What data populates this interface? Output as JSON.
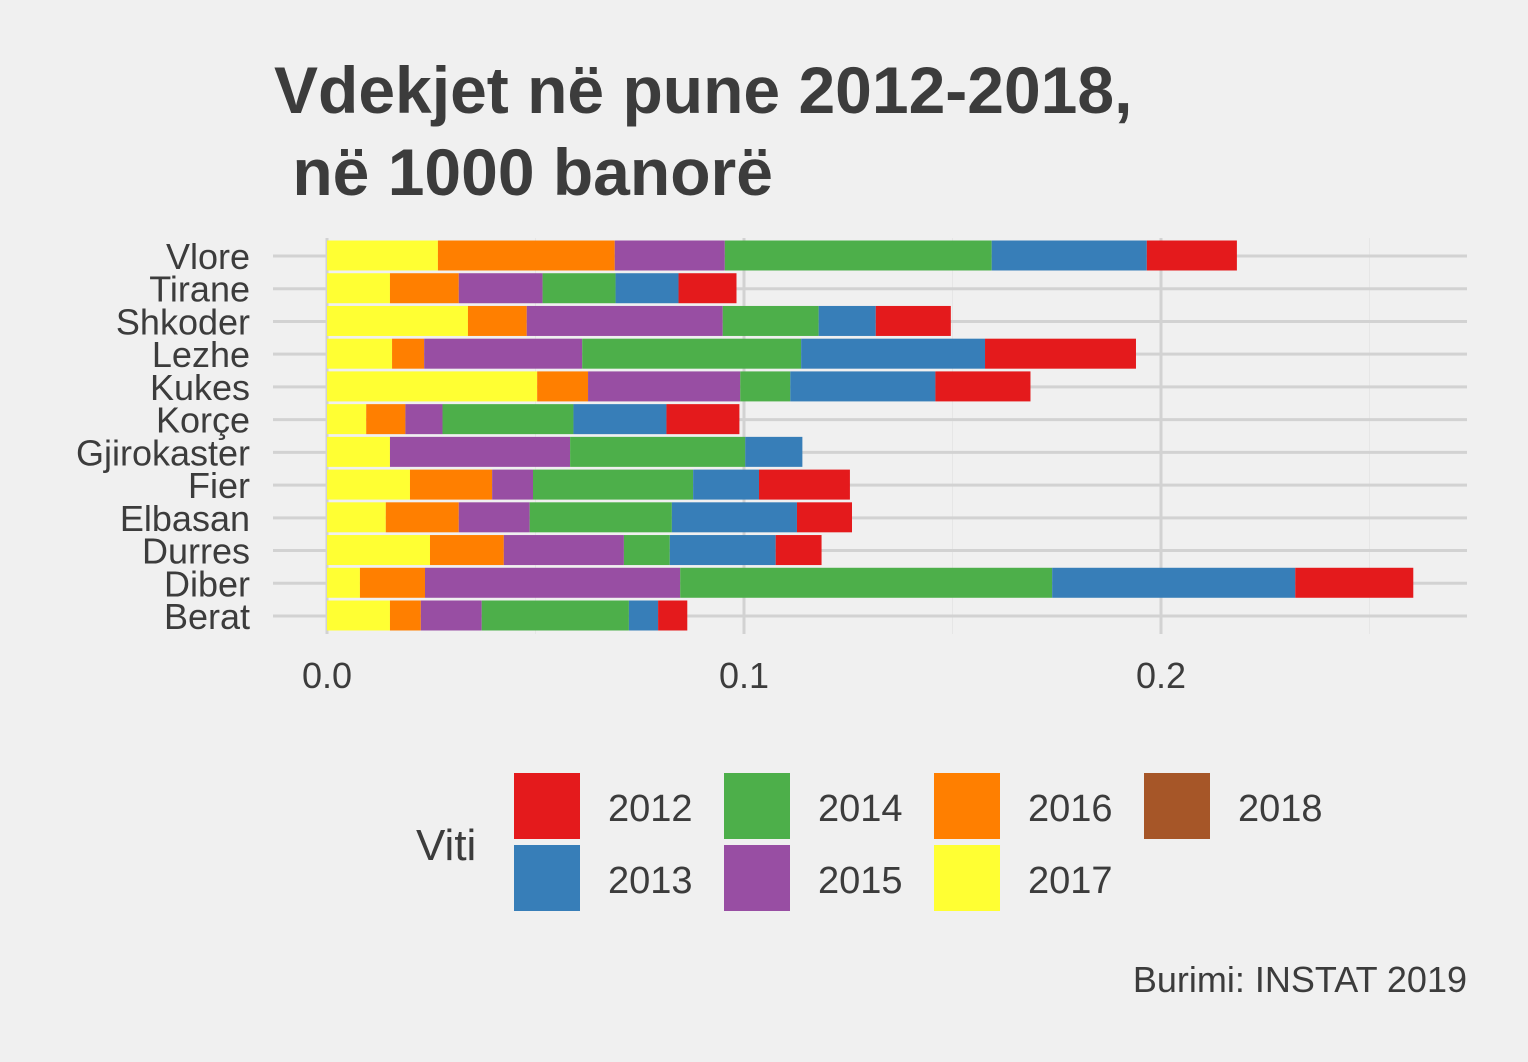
{
  "chart_data": {
    "type": "bar",
    "orientation": "horizontal",
    "stacked": true,
    "title": [
      "Vdekjet në pune 2012-2018,",
      " në 1000 banorë"
    ],
    "caption": "Burimi: INSTAT 2019",
    "xlabel": "",
    "ylabel": "",
    "xlim": [
      -0.013,
      0.273
    ],
    "xticks": [
      0.0,
      0.1,
      0.2
    ],
    "xtick_labels": [
      "0.0",
      "0.1",
      "0.2"
    ],
    "grid": true,
    "legend": {
      "title": "Viti",
      "position": "bottom"
    },
    "categories": [
      "Vlore",
      "Tirane",
      "Shkoder",
      "Lezhe",
      "Kukes",
      "Korçe",
      "Gjirokaster",
      "Fier",
      "Elbasan",
      "Durres",
      "Diber",
      "Berat"
    ],
    "stack_order": [
      "2017",
      "2016",
      "2015",
      "2014",
      "2013",
      "2012",
      "2018"
    ],
    "series": [
      {
        "name": "2012",
        "color": "#e41a1c",
        "values": [
          0.0216,
          0.0139,
          0.018,
          0.0362,
          0.0228,
          0.0175,
          0,
          0.0218,
          0.0132,
          0.011,
          0.0283,
          0.007
        ]
      },
      {
        "name": "2013",
        "color": "#377eb8",
        "values": [
          0.0372,
          0.0151,
          0.0137,
          0.0441,
          0.0348,
          0.0223,
          0.0137,
          0.0158,
          0.03,
          0.0254,
          0.0583,
          0.007
        ]
      },
      {
        "name": "2014",
        "color": "#4daf4a",
        "values": [
          0.064,
          0.0175,
          0.023,
          0.0525,
          0.012,
          0.0314,
          0.042,
          0.0384,
          0.0341,
          0.011,
          0.0892,
          0.0353
        ]
      },
      {
        "name": "2015",
        "color": "#984ea3",
        "values": [
          0.0264,
          0.0201,
          0.047,
          0.0379,
          0.0365,
          0.0089,
          0.0432,
          0.0098,
          0.017,
          0.0288,
          0.0612,
          0.0146
        ]
      },
      {
        "name": "2016",
        "color": "#ff7f00",
        "values": [
          0.0424,
          0.0165,
          0.0141,
          0.0077,
          0.0122,
          0.0094,
          0,
          0.0197,
          0.0175,
          0.0177,
          0.0156,
          0.0074
        ]
      },
      {
        "name": "2017",
        "color": "#ffff33",
        "values": [
          0.0266,
          0.0151,
          0.0338,
          0.0156,
          0.0504,
          0.0094,
          0.0151,
          0.0199,
          0.0141,
          0.0247,
          0.0079,
          0.0151
        ]
      },
      {
        "name": "2018",
        "color": "#a65628",
        "values": [
          0,
          0,
          0,
          0,
          0,
          0,
          0,
          0,
          0,
          0,
          0,
          0
        ]
      }
    ],
    "legend_order": [
      "2012",
      "2013",
      "2014",
      "2015",
      "2016",
      "2017",
      "2018"
    ]
  }
}
